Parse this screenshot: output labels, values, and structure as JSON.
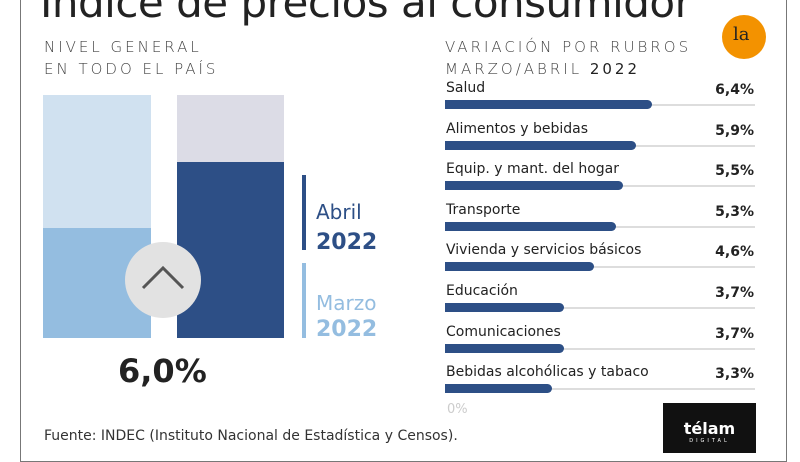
{
  "title": "Índice de precios al consumidor",
  "left": {
    "subtitle_line1": "NIVEL GENERAL",
    "subtitle_line2": "EN TODO EL PAÍS",
    "value": "6,0%",
    "legend": [
      {
        "month": "Abril",
        "year": "2022",
        "color": "#2d4f86"
      },
      {
        "month": "Marzo",
        "year": "2022",
        "color": "#94bde0"
      }
    ]
  },
  "right": {
    "subtitle_line1": "VARIACIÓN POR RUBROS",
    "subtitle_line2": "MARZO/ABRIL",
    "subtitle_year": "2022",
    "zero_label": "0%"
  },
  "source": "Fuente: INDEC (Instituto Nacional de Estadística y Censos).",
  "logos": {
    "la": "la",
    "telam": "télam",
    "telam_sub": "DIGITAL"
  },
  "chart_data": {
    "type": "bar",
    "orientation": "horizontal",
    "unit": "%",
    "xlim": [
      0,
      9.6
    ],
    "categories": [
      "Salud",
      "Alimentos y bebidas",
      "Equip. y mant. del hogar",
      "Transporte",
      "Vivienda y servicios básicos",
      "Educación",
      "Comunicaciones",
      "Bebidas alcohólicas y tabaco"
    ],
    "values": [
      6.4,
      5.9,
      5.5,
      5.3,
      4.6,
      3.7,
      3.7,
      3.3
    ],
    "labels": [
      "6,4%",
      "5,9%",
      "5,5%",
      "5,3%",
      "4,6%",
      "3,7%",
      "3,7%",
      "3,3%"
    ]
  },
  "colors": {
    "dark": "#2d4f86",
    "light": "#94bde0"
  }
}
